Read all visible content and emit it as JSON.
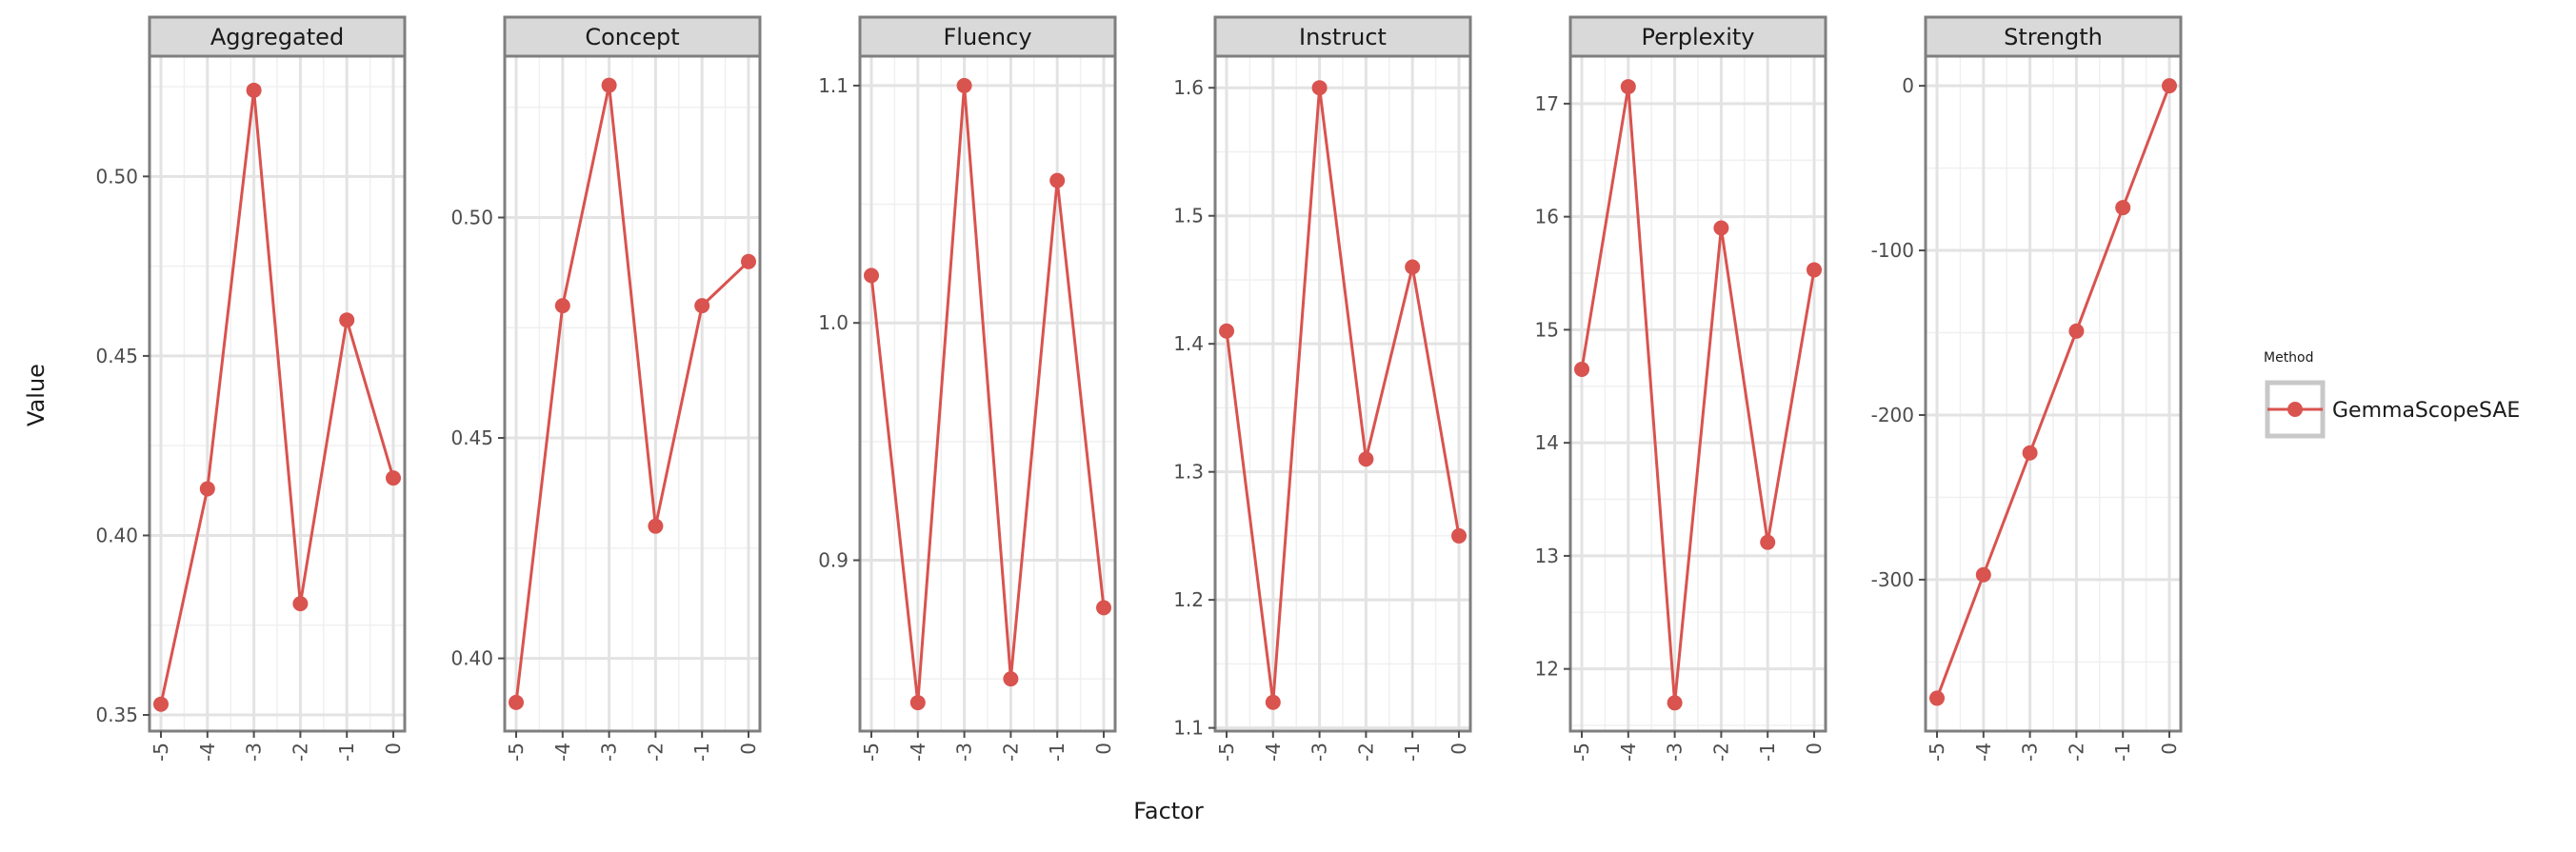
{
  "chart_data": {
    "type": "line",
    "xlabel": "Factor",
    "ylabel": "Value",
    "x": [
      -5,
      -4,
      -3,
      -2,
      -1,
      0
    ],
    "x_tick_labels": [
      "-5",
      "-4",
      "-3",
      "-2",
      "-1",
      "0"
    ],
    "grid": true,
    "legend_placement": "right",
    "legend": {
      "title": "Method",
      "entries": [
        {
          "label": "GemmaScopeSAE",
          "color": "#d9534f"
        }
      ]
    },
    "series_color": "#d9534f",
    "panels": [
      {
        "title": "Aggregated",
        "ylim": [
          0.3455,
          0.5335
        ],
        "y_ticks": [
          0.35,
          0.4,
          0.45,
          0.5
        ],
        "y_tick_labels": [
          "0.35",
          "0.40",
          "0.45",
          "0.50"
        ],
        "series": [
          {
            "name": "GemmaScopeSAE",
            "values": [
              0.353,
              0.413,
              0.524,
              0.381,
              0.46,
              0.416
            ]
          }
        ]
      },
      {
        "title": "Concept",
        "ylim": [
          0.3835,
          0.5366
        ],
        "y_ticks": [
          0.4,
          0.45,
          0.5
        ],
        "y_tick_labels": [
          "0.40",
          "0.45",
          "0.50"
        ],
        "series": [
          {
            "name": "GemmaScopeSAE",
            "values": [
              0.39,
              0.48,
              0.53,
              0.43,
              0.48,
              0.49
            ]
          }
        ]
      },
      {
        "title": "Fluency",
        "ylim": [
          0.828,
          1.1124
        ],
        "y_ticks": [
          0.9,
          1.0,
          1.1
        ],
        "y_tick_labels": [
          "0.9",
          "1.0",
          "1.1"
        ],
        "series": [
          {
            "name": "GemmaScopeSAE",
            "values": [
              1.02,
              0.84,
              1.1,
              0.85,
              1.06,
              0.88
            ]
          }
        ]
      },
      {
        "title": "Instruct",
        "ylim": [
          1.0975,
          1.6247
        ],
        "y_ticks": [
          1.1,
          1.2,
          1.3,
          1.4,
          1.5,
          1.6
        ],
        "y_tick_labels": [
          "1.1",
          "1.2",
          "1.3",
          "1.4",
          "1.5",
          "1.6"
        ],
        "series": [
          {
            "name": "GemmaScopeSAE",
            "values": [
              1.41,
              1.12,
              1.6,
              1.31,
              1.46,
              1.25
            ]
          }
        ]
      },
      {
        "title": "Perplexity",
        "ylim": [
          11.45,
          17.42
        ],
        "y_ticks": [
          12,
          13,
          14,
          15,
          16,
          17
        ],
        "y_tick_labels": [
          "12",
          "13",
          "14",
          "15",
          "16",
          "17"
        ],
        "series": [
          {
            "name": "GemmaScopeSAE",
            "values": [
              14.65,
              17.15,
              11.7,
              15.9,
              13.12,
              15.53
            ]
          }
        ]
      },
      {
        "title": "Strength",
        "ylim": [
          -392,
          18
        ],
        "y_ticks": [
          -300,
          -200,
          -100,
          0
        ],
        "y_tick_labels": [
          "-300",
          "-200",
          "-100",
          "0"
        ],
        "series": [
          {
            "name": "GemmaScopeSAE",
            "values": [
              -372,
              -297,
              -223,
              -149,
              -74,
              0
            ]
          }
        ]
      }
    ]
  }
}
